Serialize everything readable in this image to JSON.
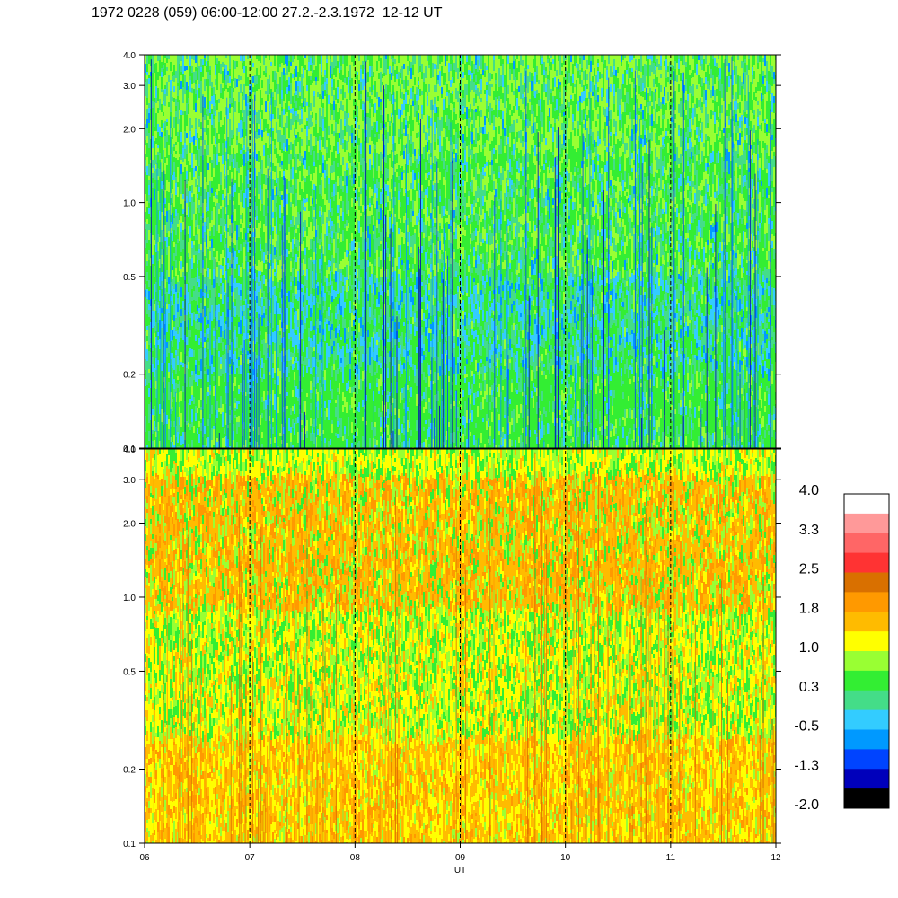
{
  "title": "1972 0228 (059) 06:00-12:00 27.2.-2.3.1972  12-12 UT",
  "chart_data": {
    "type": "heatmap",
    "xlabel": "UT",
    "x_ticks": [
      "06",
      "07",
      "08",
      "09",
      "10",
      "11",
      "12"
    ],
    "xlim": [
      6,
      12
    ],
    "y_scale": "log",
    "ylim": [
      0.1,
      4.0
    ],
    "y_ticks": [
      "0.1",
      "0.2",
      "0.5",
      "1.0",
      "2.0",
      "3.0",
      "4.0"
    ],
    "vertical_dashed_lines_at": [
      7,
      8,
      9,
      10,
      11
    ],
    "panels": [
      {
        "name": "upper",
        "dominant_levels": [
          0.3,
          -0.5,
          1.0
        ]
      },
      {
        "name": "lower",
        "dominant_levels": [
          1.0,
          1.8,
          0.3
        ]
      }
    ],
    "colorbar": {
      "labels": [
        "4.0",
        "3.3",
        "2.5",
        "1.8",
        "1.0",
        "0.3",
        "-0.5",
        "-1.3",
        "-2.0"
      ],
      "colors": [
        "#ffffff",
        "#ff9999",
        "#ff6666",
        "#ff3333",
        "#d97000",
        "#ff9900",
        "#ffbb00",
        "#ffff00",
        "#99ff33",
        "#33ee33",
        "#44dd88",
        "#33ccff",
        "#0099ff",
        "#0044ff",
        "#0000bb",
        "#000000"
      ]
    }
  }
}
